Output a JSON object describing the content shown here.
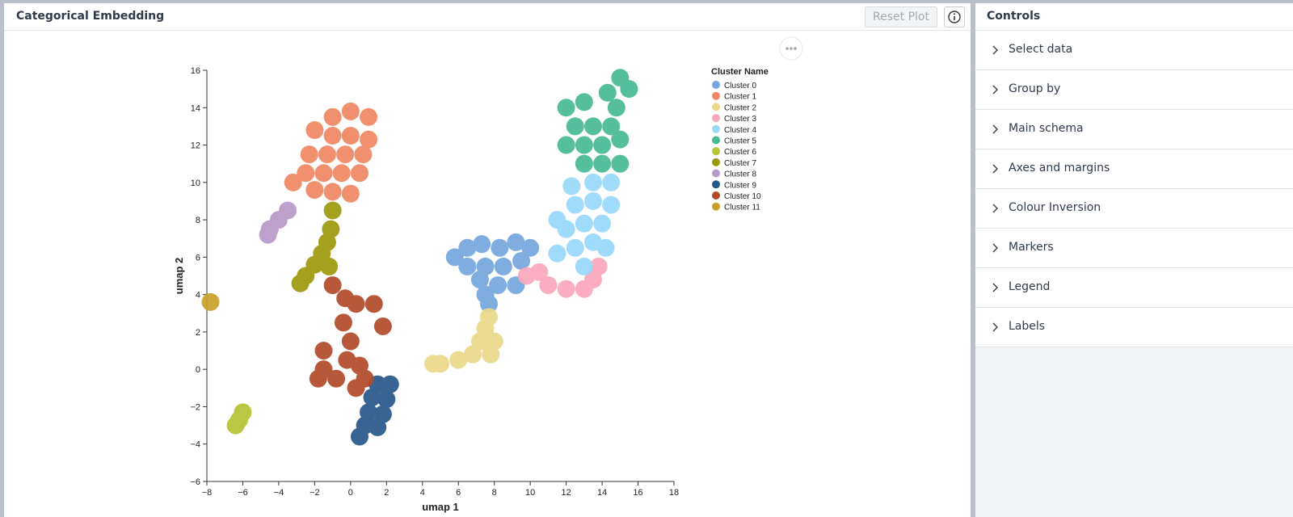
{
  "header": {
    "title": "Categorical Embedding",
    "reset_button": "Reset Plot"
  },
  "controls": {
    "title": "Controls",
    "sections": [
      "Select data",
      "Group by",
      "Main schema",
      "Axes and margins",
      "Colour Inversion",
      "Markers",
      "Legend",
      "Labels"
    ]
  },
  "chart_data": {
    "type": "scatter",
    "xlabel": "umap 1",
    "ylabel": "umap 2",
    "legend_title": "Cluster Name",
    "xlim": [
      -8,
      18
    ],
    "ylim": [
      -6,
      16
    ],
    "xticks": [
      {
        "value": -8,
        "label": "−8"
      },
      {
        "value": -6,
        "label": "−6"
      },
      {
        "value": -4,
        "label": "−4"
      },
      {
        "value": -2,
        "label": "−2"
      },
      0,
      2,
      4,
      6,
      8,
      10,
      12,
      14,
      16,
      18
    ],
    "yticks": [
      {
        "value": -6,
        "label": "−6"
      },
      {
        "value": -4,
        "label": "−4"
      },
      {
        "value": -2,
        "label": "−2"
      },
      0,
      2,
      4,
      6,
      8,
      10,
      12,
      14,
      16
    ],
    "series": [
      {
        "name": "Cluster 0",
        "color": "#76a7dd",
        "x": [
          5.8,
          6.5,
          7.3,
          8.3,
          9.2,
          10,
          6.5,
          7.5,
          8.5,
          9.5,
          7.2,
          8.2,
          9.2,
          7.5,
          7.7
        ],
        "values": [
          6,
          6.5,
          6.7,
          6.5,
          6.8,
          6.5,
          5.5,
          5.5,
          5.5,
          5.8,
          4.8,
          4.5,
          4.5,
          4,
          3.5
        ]
      },
      {
        "name": "Cluster 1",
        "color": "#ef8763",
        "x": [
          -1,
          0,
          1,
          -2,
          -1,
          0,
          1,
          -2.3,
          -1.3,
          -0.3,
          0.7,
          -2.5,
          -1.5,
          -0.5,
          0.5,
          -2,
          -1,
          0,
          -3.2
        ],
        "values": [
          13.5,
          13.8,
          13.5,
          12.8,
          12.5,
          12.5,
          12.3,
          11.5,
          11.5,
          11.5,
          11.5,
          10.5,
          10.5,
          10.5,
          10.5,
          9.6,
          9.5,
          9.4,
          10
        ]
      },
      {
        "name": "Cluster 2",
        "color": "#ebd98a",
        "x": [
          8,
          7.5,
          7.2,
          6.8,
          7.8,
          6,
          5,
          4.6,
          7.7
        ],
        "values": [
          1.5,
          2.2,
          1.5,
          0.8,
          0.8,
          0.5,
          0.3,
          0.3,
          2.8
        ]
      },
      {
        "name": "Cluster 3",
        "color": "#fba7bd",
        "x": [
          9.8,
          10.5,
          11,
          12,
          13,
          13.5,
          13.8
        ],
        "values": [
          5,
          5.2,
          4.5,
          4.3,
          4.3,
          4.8,
          5.5
        ]
      },
      {
        "name": "Cluster 4",
        "color": "#9ad9fb",
        "x": [
          11.5,
          12.5,
          13.5,
          14.2,
          12,
          13,
          14,
          12.5,
          13.5,
          14.5,
          12.3,
          13.5,
          14.5,
          11.5,
          13
        ],
        "values": [
          6.2,
          6.5,
          6.8,
          6.5,
          7.5,
          7.8,
          7.8,
          8.8,
          9,
          8.8,
          9.8,
          10,
          10,
          8,
          5.5
        ]
      },
      {
        "name": "Cluster 5",
        "color": "#47b994",
        "x": [
          12,
          13,
          12.5,
          13.5,
          14.5,
          13,
          14,
          15,
          13,
          14,
          15,
          14.8,
          15.5,
          15,
          14.3,
          12
        ],
        "values": [
          14,
          14.3,
          13,
          13,
          13,
          12,
          12,
          12.3,
          11,
          11,
          11,
          14,
          15,
          15.6,
          14.8,
          12
        ]
      },
      {
        "name": "Cluster 6",
        "color": "#b5c334",
        "x": [
          -6,
          -6.2,
          -6.4
        ],
        "values": [
          -2.3,
          -2.7,
          -3
        ]
      },
      {
        "name": "Cluster 7",
        "color": "#9c9a0c",
        "x": [
          -1,
          -1.1,
          -1.3,
          -1.6,
          -2,
          -2.5,
          -2.8,
          -1.2
        ],
        "values": [
          8.5,
          7.5,
          6.8,
          6.2,
          5.6,
          5,
          4.6,
          5.5
        ]
      },
      {
        "name": "Cluster 8",
        "color": "#b89ac9",
        "x": [
          -3.5,
          -4,
          -4.5,
          -4.6
        ],
        "values": [
          8.5,
          8,
          7.5,
          7.2
        ]
      },
      {
        "name": "Cluster 9",
        "color": "#27578a",
        "x": [
          1.5,
          2.2,
          1.2,
          2,
          1,
          1.8,
          0.8,
          1.5,
          0.5
        ],
        "values": [
          -0.8,
          -0.8,
          -1.5,
          -1.6,
          -2.3,
          -2.4,
          -3,
          -3.1,
          -3.6
        ]
      },
      {
        "name": "Cluster 10",
        "color": "#b24a2b",
        "x": [
          -1,
          -0.3,
          0.3,
          -0.4,
          0,
          -0.2,
          0.5,
          -1.5,
          -0.8,
          -1.8,
          0.8,
          1.3,
          1.8,
          -1.5,
          0.3
        ],
        "values": [
          4.5,
          3.8,
          3.5,
          2.5,
          1.5,
          0.5,
          0.2,
          0,
          -0.5,
          -0.5,
          -0.5,
          3.5,
          2.3,
          1,
          -1
        ]
      },
      {
        "name": "Cluster 11",
        "color": "#c9a128",
        "x": [
          -7.8
        ],
        "values": [
          3.6
        ]
      }
    ]
  }
}
